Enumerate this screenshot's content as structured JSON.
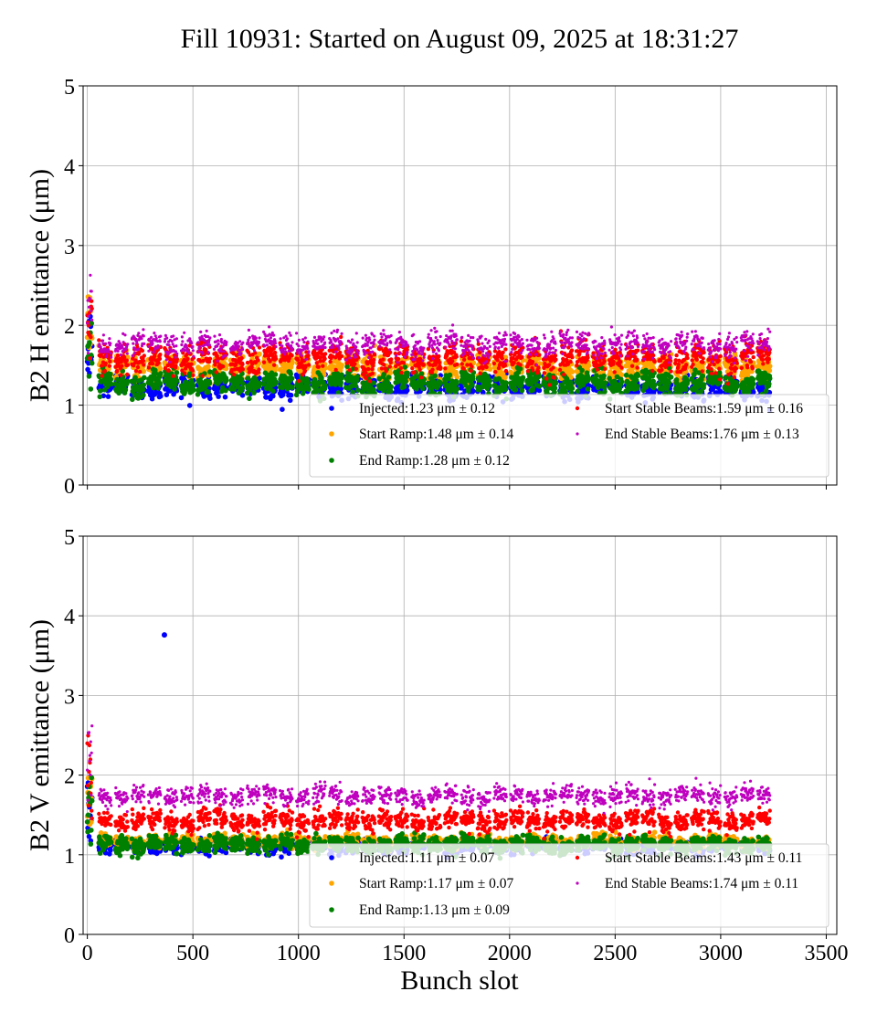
{
  "figure": {
    "title": "Fill 10931: Started on August 09, 2025 at 18:31:27",
    "xlabel": "Bunch slot"
  },
  "colors": {
    "injected": "#0000ff",
    "start_ramp": "#ffa500",
    "end_ramp": "#008000",
    "start_stable": "#ff0000",
    "end_stable": "#bf00bf",
    "grid": "#b0b0b0"
  },
  "chart_data": [
    {
      "type": "scatter",
      "ylabel": "B2 H emittance (μm)",
      "xlim": [
        -20,
        3550
      ],
      "ylim": [
        0,
        5
      ],
      "xticks": [
        0,
        500,
        1000,
        1500,
        2000,
        2500,
        3000,
        3500
      ],
      "yticks": [
        0,
        1,
        2,
        3,
        4,
        5
      ],
      "show_xtick_labels": false,
      "grid": true,
      "legend_position": "lower-right",
      "series": [
        {
          "name": "Injected",
          "legend": "Injected:1.23 μm ± 0.12",
          "mean": 1.23,
          "std": 0.12
        },
        {
          "name": "Start Ramp",
          "legend": "Start Ramp:1.48 μm ± 0.14",
          "mean": 1.48,
          "std": 0.14
        },
        {
          "name": "End Ramp",
          "legend": "End Ramp:1.28 μm ± 0.12",
          "mean": 1.28,
          "std": 0.12
        },
        {
          "name": "Start Stable Beams",
          "legend": "Start Stable Beams:1.59 μm ± 0.16",
          "mean": 1.59,
          "std": 0.16
        },
        {
          "name": "End Stable Beams",
          "legend": "End Stable Beams:1.76 μm ± 0.13",
          "mean": 1.76,
          "std": 0.13
        }
      ]
    },
    {
      "type": "scatter",
      "ylabel": "B2 V emittance (μm)",
      "xlim": [
        -20,
        3550
      ],
      "ylim": [
        0,
        5
      ],
      "xticks": [
        0,
        500,
        1000,
        1500,
        2000,
        2500,
        3000,
        3500
      ],
      "yticks": [
        0,
        1,
        2,
        3,
        4,
        5
      ],
      "show_xtick_labels": true,
      "grid": true,
      "legend_position": "lower-right",
      "series": [
        {
          "name": "Injected",
          "legend": "Injected:1.11 μm ± 0.07",
          "mean": 1.11,
          "std": 0.07
        },
        {
          "name": "Start Ramp",
          "legend": "Start Ramp:1.17 μm ± 0.07",
          "mean": 1.17,
          "std": 0.07
        },
        {
          "name": "End Ramp",
          "legend": "End Ramp:1.13 μm ± 0.09",
          "mean": 1.13,
          "std": 0.09
        },
        {
          "name": "Start Stable Beams",
          "legend": "Start Stable Beams:1.43 μm ± 0.11",
          "mean": 1.43,
          "std": 0.11
        },
        {
          "name": "End Stable Beams",
          "legend": "End Stable Beams:1.74 μm ± 0.11",
          "mean": 1.74,
          "std": 0.11
        }
      ]
    }
  ]
}
